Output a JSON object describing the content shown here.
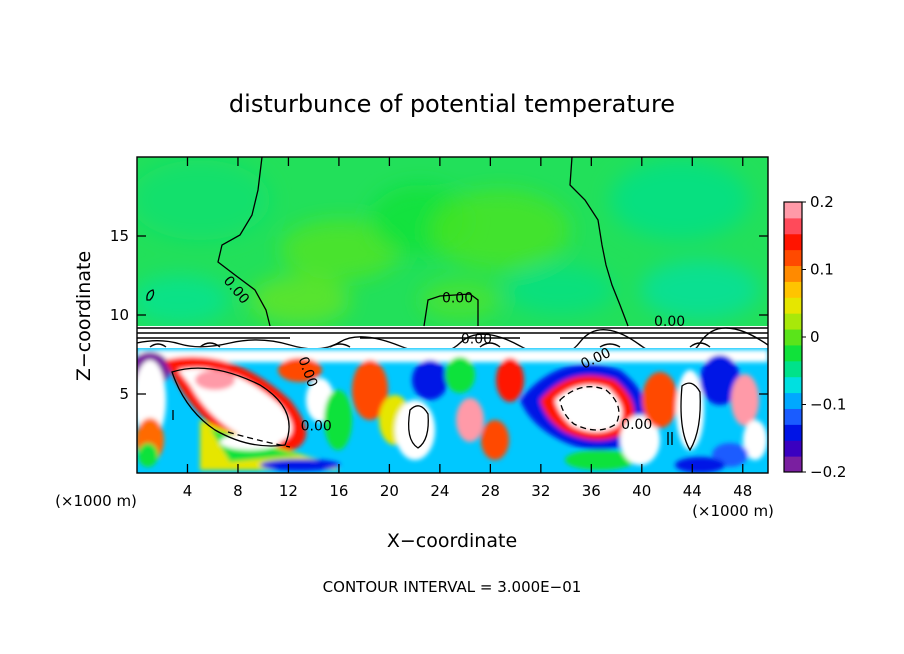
{
  "chart_data": {
    "type": "heatmap",
    "title": "disturbunce of potential temperature",
    "xlabel": "X−coordinate",
    "ylabel": "Z−coordinate",
    "x_unit": "(×1000 m)",
    "x_unit_right": "(×1000 m)",
    "footer": "CONTOUR INTERVAL = 3.000E−01",
    "xlim": [
      0,
      50
    ],
    "ylim": [
      0,
      20
    ],
    "x_ticks": [
      4,
      8,
      12,
      16,
      20,
      24,
      28,
      32,
      36,
      40,
      44,
      48
    ],
    "y_ticks": [
      5,
      10,
      15
    ],
    "colorbar": {
      "range": [
        -0.2,
        0.2
      ],
      "tick_values": [
        0.2,
        0.1,
        0,
        -0.1,
        -0.2
      ],
      "tick_labels": [
        "0.2",
        "0.1",
        "0",
        "−0.1",
        "−0.2"
      ],
      "colors": [
        "#7a1fa0",
        "#3a00c0",
        "#0014e6",
        "#1a5cff",
        "#00a8ff",
        "#00e0e0",
        "#00e28a",
        "#10e23a",
        "#5ae41a",
        "#a8e80a",
        "#e6e600",
        "#ffc400",
        "#ff8a00",
        "#ff4a00",
        "#ff1400",
        "#ff4a5a",
        "#ff9aa8"
      ]
    },
    "contour_labels": [
      {
        "text": "0.00",
        "x": 7.6,
        "z": 11.4,
        "angle": 50
      },
      {
        "text": "0.00",
        "x": 25.4,
        "z": 10.8,
        "angle": 0
      },
      {
        "text": "0.00",
        "x": 42.2,
        "z": 9.3,
        "angle": 0
      },
      {
        "text": "0.00",
        "x": 26.9,
        "z": 8.2,
        "angle": 0
      },
      {
        "text": "0.00",
        "x": 13.2,
        "z": 6.3,
        "angle": 70
      },
      {
        "text": "0.00",
        "x": 36.5,
        "z": 7.0,
        "angle": -25
      },
      {
        "text": "0.00",
        "x": 14.2,
        "z": 2.7,
        "angle": 0
      },
      {
        "text": "0.00",
        "x": 39.6,
        "z": 2.8,
        "angle": 0
      }
    ],
    "field": {
      "upper_layer_z": [
        9.2,
        20
      ],
      "upper_layer_value_range": [
        -0.04,
        0.03
      ],
      "lower_layer_z": [
        0,
        7.8
      ],
      "lower_layer_value_range": [
        -0.2,
        0.2
      ]
    },
    "grid": false,
    "legend": "colorbar-right"
  }
}
